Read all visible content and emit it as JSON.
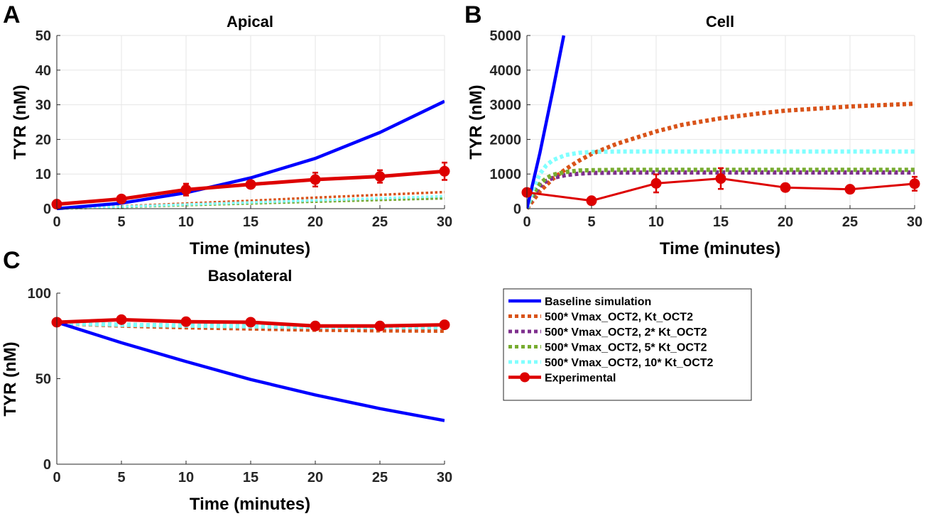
{
  "chart_data": [
    {
      "type": "line",
      "panel": "A",
      "title": "Apical",
      "xlabel": "Time (minutes)",
      "ylabel": "TYR (nM)",
      "xlim": [
        0,
        30
      ],
      "ylim": [
        0,
        50
      ],
      "xticks": [
        "0",
        "5",
        "10",
        "15",
        "20",
        "25",
        "30"
      ],
      "yticks": [
        "0",
        "10",
        "20",
        "30",
        "40",
        "50"
      ],
      "grid": true,
      "series": [
        {
          "name": "Baseline simulation",
          "color": "#0000ff",
          "style": "solid",
          "x": [
            0,
            5,
            10,
            15,
            20,
            25,
            30
          ],
          "y": [
            0,
            1.6,
            4.6,
            8.9,
            14.5,
            22.0,
            31.0
          ]
        },
        {
          "name": "500* Vmax_OCT2, Kt_OCT2",
          "color": "#d95319",
          "style": "dotted",
          "x": [
            0,
            5,
            10,
            15,
            20,
            25,
            30
          ],
          "y": [
            0,
            0.7,
            1.5,
            2.3,
            3.2,
            4.0,
            4.8
          ]
        },
        {
          "name": "500* Vmax_OCT2, 2* Kt_OCT2",
          "color": "#7e2f8e",
          "style": "dotted",
          "x": [
            0,
            5,
            10,
            15,
            20,
            25,
            30
          ],
          "y": [
            0,
            0.5,
            1.1,
            1.6,
            2.1,
            2.6,
            3.0
          ]
        },
        {
          "name": "500* Vmax_OCT2, 5* Kt_OCT2",
          "color": "#77ac30",
          "style": "dotted",
          "x": [
            0,
            5,
            10,
            15,
            20,
            25,
            30
          ],
          "y": [
            0,
            0.5,
            1.0,
            1.5,
            2.0,
            2.5,
            3.0
          ]
        },
        {
          "name": "500* Vmax_OCT2, 10* Kt_OCT2",
          "color": "#80ffff",
          "style": "dotted",
          "x": [
            0,
            5,
            10,
            15,
            20,
            25,
            30
          ],
          "y": [
            0,
            0.6,
            1.2,
            1.8,
            2.4,
            3.0,
            3.6
          ]
        },
        {
          "name": "Experimental",
          "color": "#dd0000",
          "style": "marker",
          "x": [
            0,
            5,
            10,
            15,
            20,
            25,
            30
          ],
          "y": [
            1.3,
            2.8,
            5.5,
            7.0,
            8.4,
            9.3,
            10.8
          ],
          "err": [
            0.3,
            0.6,
            1.7,
            1.0,
            2.0,
            1.8,
            2.5
          ]
        }
      ]
    },
    {
      "type": "line",
      "panel": "B",
      "title": "Cell",
      "xlabel": "Time (minutes)",
      "ylabel": "TYR (nM)",
      "xlim": [
        0,
        30
      ],
      "ylim": [
        0,
        5000
      ],
      "xticks": [
        "0",
        "5",
        "10",
        "15",
        "20",
        "25",
        "30"
      ],
      "yticks": [
        "0",
        "1000",
        "2000",
        "3000",
        "4000",
        "5000"
      ],
      "grid": true,
      "series": [
        {
          "name": "Baseline simulation",
          "color": "#0000ff",
          "style": "solid",
          "x": [
            0,
            1,
            2,
            2.85
          ],
          "y": [
            0,
            1600,
            3400,
            5000
          ]
        },
        {
          "name": "500* Vmax_OCT2, Kt_OCT2",
          "color": "#d95319",
          "style": "dotted",
          "x": [
            0,
            1,
            2,
            3,
            4,
            5,
            7,
            10,
            12,
            15,
            18,
            20,
            25,
            30
          ],
          "y": [
            0,
            500,
            860,
            1140,
            1380,
            1580,
            1880,
            2230,
            2420,
            2610,
            2750,
            2830,
            2950,
            3030
          ]
        },
        {
          "name": "500* Vmax_OCT2, 2* Kt_OCT2",
          "color": "#7e2f8e",
          "style": "dotted",
          "x": [
            0,
            0.5,
            1,
            1.5,
            2,
            3,
            4,
            5,
            7,
            10,
            15,
            20,
            25,
            30
          ],
          "y": [
            0,
            400,
            650,
            800,
            890,
            970,
            1010,
            1030,
            1040,
            1045,
            1045,
            1045,
            1045,
            1045
          ]
        },
        {
          "name": "500* Vmax_OCT2, 5* Kt_OCT2",
          "color": "#77ac30",
          "style": "dotted",
          "x": [
            0,
            0.5,
            1,
            1.5,
            2,
            3,
            4,
            5,
            7,
            10,
            15,
            20,
            25,
            30
          ],
          "y": [
            0,
            450,
            720,
            880,
            980,
            1060,
            1100,
            1110,
            1120,
            1120,
            1120,
            1120,
            1120,
            1120
          ]
        },
        {
          "name": "500* Vmax_OCT2, 10* Kt_OCT2",
          "color": "#80ffff",
          "style": "dotted",
          "x": [
            0,
            0.5,
            1,
            1.5,
            2,
            3,
            4,
            5,
            7,
            10,
            15,
            20,
            25,
            30
          ],
          "y": [
            0,
            600,
            1000,
            1250,
            1400,
            1550,
            1610,
            1640,
            1650,
            1650,
            1650,
            1650,
            1650,
            1650
          ]
        },
        {
          "name": "Experimental",
          "color": "#dd0000",
          "style": "marker",
          "x": [
            0,
            5,
            10,
            15,
            20,
            25,
            30
          ],
          "y": [
            470,
            230,
            730,
            870,
            610,
            560,
            720
          ],
          "err": [
            100,
            40,
            260,
            300,
            110,
            80,
            200
          ]
        }
      ]
    },
    {
      "type": "line",
      "panel": "C",
      "title": "Basolateral",
      "xlabel": "Time (minutes)",
      "ylabel": "TYR (nM)",
      "xlim": [
        0,
        30
      ],
      "ylim": [
        0,
        100
      ],
      "xticks": [
        "0",
        "5",
        "10",
        "15",
        "20",
        "25",
        "30"
      ],
      "yticks": [
        "0",
        "50",
        "100"
      ],
      "grid": false,
      "series": [
        {
          "name": "Baseline simulation",
          "color": "#0000ff",
          "style": "solid",
          "x": [
            0,
            5,
            10,
            15,
            20,
            25,
            30
          ],
          "y": [
            83,
            71,
            60,
            49.5,
            40.5,
            32.5,
            25.5
          ]
        },
        {
          "name": "500* Vmax_OCT2, Kt_OCT2",
          "color": "#d95319",
          "style": "dotted",
          "x": [
            0,
            5,
            10,
            15,
            20,
            25,
            30
          ],
          "y": [
            82.5,
            81,
            80,
            79.3,
            78.6,
            78.2,
            78
          ]
        },
        {
          "name": "500* Vmax_OCT2, 2* Kt_OCT2",
          "color": "#7e2f8e",
          "style": "dotted",
          "x": [
            0,
            5,
            10,
            15,
            20,
            25,
            30
          ],
          "y": [
            82.5,
            81.5,
            81,
            80.5,
            80.2,
            80,
            80
          ]
        },
        {
          "name": "500* Vmax_OCT2, 5* Kt_OCT2",
          "color": "#77ac30",
          "style": "dotted",
          "x": [
            0,
            5,
            10,
            15,
            20,
            25,
            30
          ],
          "y": [
            82.5,
            81.5,
            81,
            80.6,
            80.3,
            80.1,
            80
          ]
        },
        {
          "name": "500* Vmax_OCT2, 10* Kt_OCT2",
          "color": "#80ffff",
          "style": "dotted",
          "x": [
            0,
            5,
            10,
            15,
            20,
            25,
            30
          ],
          "y": [
            82.5,
            81.5,
            81,
            80.6,
            80.3,
            80.1,
            80
          ]
        },
        {
          "name": "Experimental",
          "color": "#dd0000",
          "style": "marker",
          "x": [
            0,
            5,
            10,
            15,
            20,
            25,
            30
          ],
          "y": [
            83,
            84.5,
            83.3,
            83,
            80.8,
            80.8,
            81.5
          ],
          "err": [
            0.4,
            0.6,
            0.5,
            0.5,
            0.5,
            0.5,
            0.5
          ]
        }
      ]
    }
  ],
  "legend": {
    "placement": "center-right",
    "items": [
      {
        "label": "Baseline simulation",
        "color": "#0000ff",
        "style": "solid"
      },
      {
        "label": "500* Vmax_OCT2, Kt_OCT2",
        "color": "#d95319",
        "style": "dotted"
      },
      {
        "label": "500* Vmax_OCT2, 2* Kt_OCT2",
        "color": "#7e2f8e",
        "style": "dotted"
      },
      {
        "label": "500* Vmax_OCT2, 5* Kt_OCT2",
        "color": "#77ac30",
        "style": "dotted"
      },
      {
        "label": "500* Vmax_OCT2, 10* Kt_OCT2",
        "color": "#80ffff",
        "style": "dotted"
      },
      {
        "label": "Experimental",
        "color": "#dd0000",
        "style": "marker"
      }
    ]
  }
}
